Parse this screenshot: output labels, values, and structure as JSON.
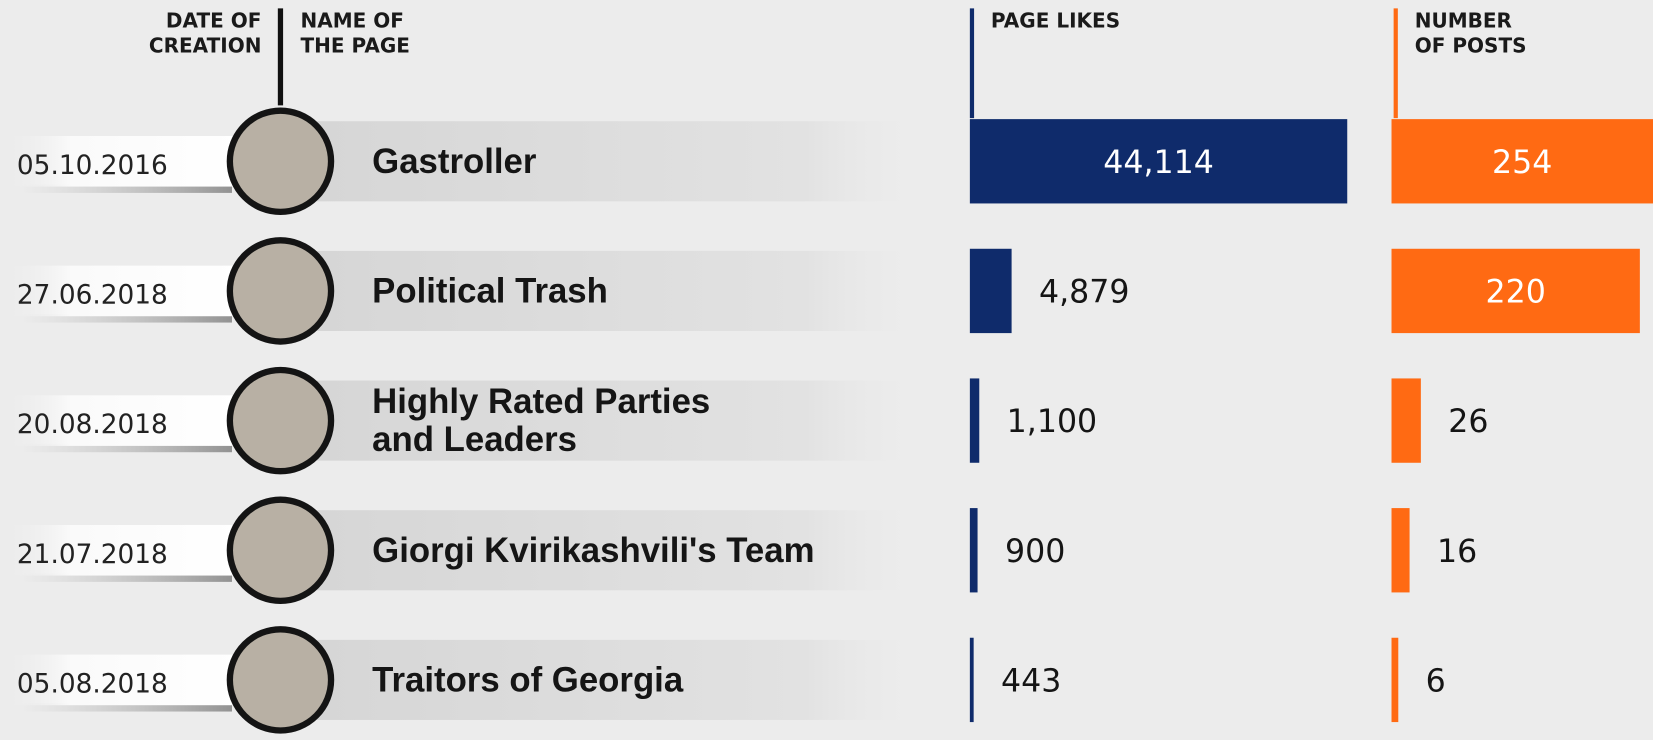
{
  "headers": {
    "date": [
      "DATE OF",
      "CREATION"
    ],
    "name": [
      "NAME OF",
      "THE PAGE"
    ],
    "likes": [
      "PAGE LIKES"
    ],
    "posts": [
      "NUMBER",
      "OF POSTS"
    ]
  },
  "colors": {
    "likes": "#0f2b6b",
    "posts": "#ff6a13"
  },
  "rows": [
    {
      "date": "05.10.2016",
      "name": [
        "Gastroller"
      ],
      "likes": {
        "value": 44114,
        "label": "44,114"
      },
      "posts": 254
    },
    {
      "date": "27.06.2018",
      "name": [
        "Political Trash"
      ],
      "likes": {
        "value": 4879,
        "label": "4,879"
      },
      "posts": 220
    },
    {
      "date": "20.08.2018",
      "name": [
        "Highly Rated Parties",
        "and Leaders"
      ],
      "likes": {
        "value": 1100,
        "label": "1,100"
      },
      "posts": 26
    },
    {
      "date": "21.07.2018",
      "name": [
        "Giorgi Kvirikashvili's Team"
      ],
      "likes": 900,
      "posts": 16
    },
    {
      "date": "05.08.2018",
      "name": [
        "Traitors of Georgia"
      ],
      "likes": 443,
      "posts": 6
    }
  ]
}
